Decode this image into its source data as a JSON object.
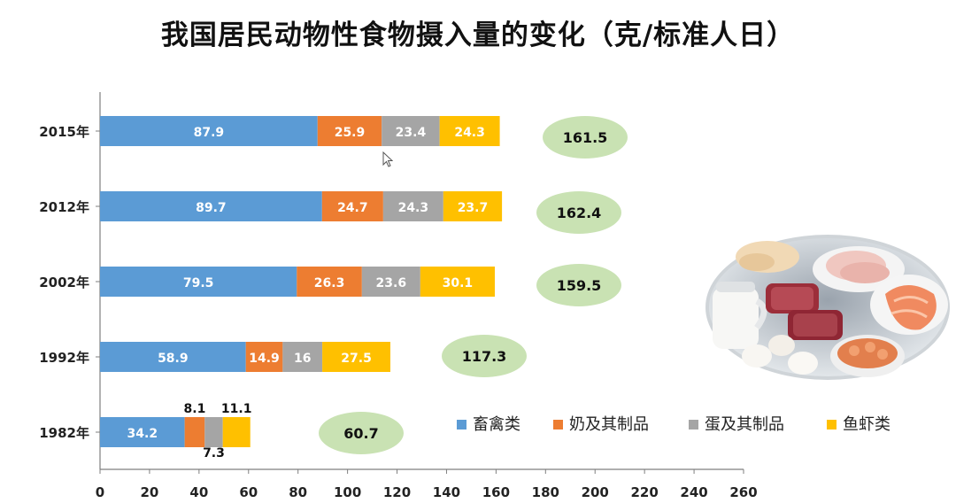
{
  "title": "我国居民动物性食物摄入量的变化（克/标准人日）",
  "chart_data": {
    "type": "bar",
    "orientation": "horizontal",
    "stacked": true,
    "categories": [
      "2015年",
      "2012年",
      "2002年",
      "1992年",
      "1982年"
    ],
    "series": [
      {
        "name": "畜禽类",
        "color": "#5b9bd5",
        "values": [
          87.9,
          89.7,
          79.5,
          58.9,
          34.2
        ]
      },
      {
        "name": "奶及其制品",
        "color": "#ed7d31",
        "values": [
          25.9,
          24.7,
          26.3,
          14.9,
          8.1
        ]
      },
      {
        "name": "蛋及其制品",
        "color": "#a5a5a5",
        "values": [
          23.4,
          24.3,
          23.6,
          16,
          7.3
        ]
      },
      {
        "name": "鱼虾类",
        "color": "#ffc000",
        "values": [
          24.3,
          23.7,
          30.1,
          27.5,
          11.1
        ]
      }
    ],
    "totals": [
      161.5,
      162.4,
      159.5,
      117.3,
      60.7
    ],
    "total_badge_color": "#c9e2b3",
    "xlim": [
      0,
      260
    ],
    "xticks": [
      "0",
      "20",
      "40",
      "60",
      "80",
      "100",
      "120",
      "140",
      "160",
      "180",
      "200",
      "220",
      "240",
      "260"
    ],
    "grid": false,
    "legend_position": "bottom-right"
  },
  "image": {
    "icon": "food-photo-icon",
    "description_label": "肉类、奶、蛋、鱼虾等动物性食物"
  }
}
